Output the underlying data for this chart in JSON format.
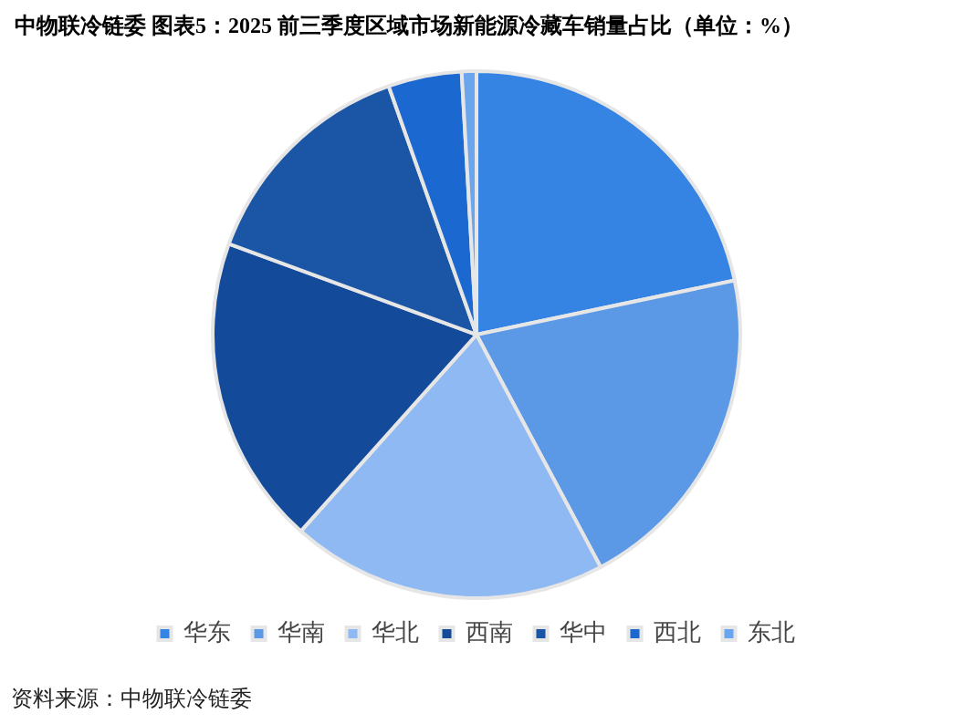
{
  "chart_data": {
    "type": "pie",
    "title": "中物联冷链委 图表5：2025 前三季度区域市场新能源冷藏车销量占比（单位：%）",
    "categories": [
      "华东",
      "华南",
      "华北",
      "西南",
      "华中",
      "西北",
      "东北"
    ],
    "values": [
      21.7,
      20.5,
      19.4,
      19.0,
      14.0,
      4.5,
      0.9
    ],
    "colors": [
      "#3584e4",
      "#5b98e6",
      "#8fb9f2",
      "#134a9a",
      "#1a55a6",
      "#1a68d0",
      "#6aa5ee"
    ],
    "legend": "bottom",
    "annotations": [
      "资料来源：中物联冷链委"
    ]
  }
}
